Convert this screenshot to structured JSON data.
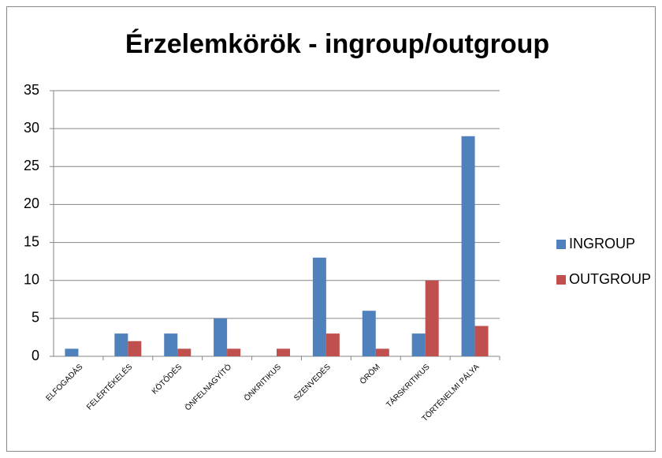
{
  "chart_data": {
    "type": "bar",
    "title": "Érzelemkörök - ingroup/outgroup",
    "categories": [
      "ELFOGADÁS",
      "FELÉRTÉKELÉS",
      "KÖTŐDÉS",
      "ÖNFELNAGYÍTÓ",
      "ÖNKRITIKUS",
      "SZENVEDÉS",
      "ÖRÖM",
      "TÁRSKRITIKUS",
      "TÖRTÉNELMI PÁLYA"
    ],
    "series": [
      {
        "name": "INGROUP",
        "color": "#4f81bd",
        "values": [
          1,
          3,
          3,
          5,
          0,
          13,
          6,
          3,
          29
        ]
      },
      {
        "name": "OUTGROUP",
        "color": "#c0504d",
        "values": [
          0,
          2,
          1,
          1,
          1,
          3,
          1,
          10,
          4
        ]
      }
    ],
    "ylim": [
      0,
      35
    ],
    "yticks": [
      0,
      5,
      10,
      15,
      20,
      25,
      30,
      35
    ],
    "grid": true,
    "legend": "right"
  }
}
